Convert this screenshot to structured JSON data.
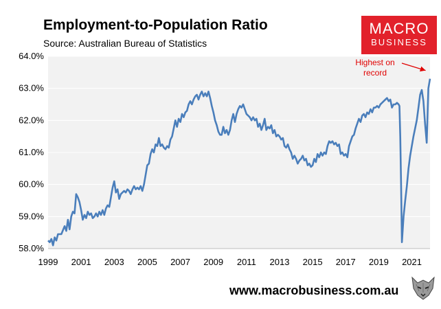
{
  "header": {
    "title": "Employment-to-Population Ratio",
    "subtitle": "Source: Australian Bureau of Statistics"
  },
  "logo": {
    "line1": "MACRO",
    "line2": "BUSINESS",
    "color": "#e2212b"
  },
  "footer": {
    "url": "www.macrobusiness.com.au",
    "icon": "wolf-icon"
  },
  "chart_data": {
    "type": "line",
    "x_tick_labels": [
      "1999",
      "2001",
      "2003",
      "2005",
      "2007",
      "2009",
      "2011",
      "2013",
      "2015",
      "2017",
      "2019",
      "2021"
    ],
    "x_ticks": [
      1999,
      2001,
      2003,
      2005,
      2007,
      2009,
      2011,
      2013,
      2015,
      2017,
      2019,
      2021
    ],
    "y_tick_labels": [
      "58.0%",
      "59.0%",
      "60.0%",
      "61.0%",
      "62.0%",
      "63.0%",
      "64.0%"
    ],
    "y_ticks": [
      58,
      59,
      60,
      61,
      62,
      63,
      64
    ],
    "xlim": [
      1999,
      2022.1
    ],
    "ylim": [
      58,
      64
    ],
    "grid": true,
    "legend": "none",
    "series_color": "#4a7ebb",
    "plot_background": "#f2f2f2",
    "annotation": {
      "lines": [
        "Highest on",
        "record"
      ],
      "color": "#e00000",
      "x": 2022,
      "y": 63.3
    },
    "series": [
      {
        "values": [
          [
            1999.0,
            58.25
          ],
          [
            1999.1,
            58.2
          ],
          [
            1999.2,
            58.3
          ],
          [
            1999.3,
            58.1
          ],
          [
            1999.4,
            58.35
          ],
          [
            1999.5,
            58.25
          ],
          [
            1999.6,
            58.45
          ],
          [
            1999.8,
            58.45
          ],
          [
            2000.0,
            58.7
          ],
          [
            2000.1,
            58.55
          ],
          [
            2000.2,
            58.9
          ],
          [
            2000.3,
            58.6
          ],
          [
            2000.4,
            59.0
          ],
          [
            2000.5,
            59.15
          ],
          [
            2000.6,
            59.1
          ],
          [
            2000.7,
            59.7
          ],
          [
            2000.8,
            59.6
          ],
          [
            2000.9,
            59.45
          ],
          [
            2001.0,
            59.2
          ],
          [
            2001.1,
            58.9
          ],
          [
            2001.2,
            59.05
          ],
          [
            2001.3,
            58.95
          ],
          [
            2001.4,
            59.15
          ],
          [
            2001.5,
            59.05
          ],
          [
            2001.6,
            59.1
          ],
          [
            2001.7,
            58.95
          ],
          [
            2001.8,
            59.0
          ],
          [
            2001.9,
            59.1
          ],
          [
            2002.0,
            59.0
          ],
          [
            2002.1,
            59.15
          ],
          [
            2002.2,
            59.05
          ],
          [
            2002.3,
            59.2
          ],
          [
            2002.4,
            59.05
          ],
          [
            2002.5,
            59.25
          ],
          [
            2002.6,
            59.35
          ],
          [
            2002.7,
            59.3
          ],
          [
            2002.8,
            59.6
          ],
          [
            2002.9,
            59.9
          ],
          [
            2003.0,
            60.1
          ],
          [
            2003.1,
            59.75
          ],
          [
            2003.2,
            59.85
          ],
          [
            2003.3,
            59.55
          ],
          [
            2003.4,
            59.7
          ],
          [
            2003.5,
            59.75
          ],
          [
            2003.6,
            59.8
          ],
          [
            2003.7,
            59.75
          ],
          [
            2003.8,
            59.85
          ],
          [
            2003.9,
            59.8
          ],
          [
            2004.0,
            59.7
          ],
          [
            2004.1,
            59.85
          ],
          [
            2004.2,
            59.95
          ],
          [
            2004.3,
            59.85
          ],
          [
            2004.4,
            59.9
          ],
          [
            2004.5,
            59.85
          ],
          [
            2004.6,
            59.95
          ],
          [
            2004.7,
            59.8
          ],
          [
            2004.8,
            60.0
          ],
          [
            2004.9,
            60.3
          ],
          [
            2005.0,
            60.6
          ],
          [
            2005.1,
            60.65
          ],
          [
            2005.2,
            60.95
          ],
          [
            2005.3,
            61.1
          ],
          [
            2005.4,
            61.0
          ],
          [
            2005.5,
            61.25
          ],
          [
            2005.6,
            61.2
          ],
          [
            2005.7,
            61.45
          ],
          [
            2005.8,
            61.2
          ],
          [
            2005.9,
            61.25
          ],
          [
            2006.0,
            61.15
          ],
          [
            2006.1,
            61.1
          ],
          [
            2006.2,
            61.2
          ],
          [
            2006.3,
            61.15
          ],
          [
            2006.4,
            61.4
          ],
          [
            2006.5,
            61.5
          ],
          [
            2006.6,
            61.75
          ],
          [
            2006.7,
            62.0
          ],
          [
            2006.8,
            61.8
          ],
          [
            2006.9,
            62.05
          ],
          [
            2007.0,
            61.95
          ],
          [
            2007.1,
            62.2
          ],
          [
            2007.2,
            62.1
          ],
          [
            2007.3,
            62.25
          ],
          [
            2007.4,
            62.3
          ],
          [
            2007.5,
            62.5
          ],
          [
            2007.6,
            62.6
          ],
          [
            2007.7,
            62.5
          ],
          [
            2007.8,
            62.65
          ],
          [
            2007.9,
            62.75
          ],
          [
            2008.0,
            62.8
          ],
          [
            2008.1,
            62.65
          ],
          [
            2008.2,
            62.8
          ],
          [
            2008.3,
            62.9
          ],
          [
            2008.4,
            62.75
          ],
          [
            2008.5,
            62.85
          ],
          [
            2008.6,
            62.75
          ],
          [
            2008.7,
            62.9
          ],
          [
            2008.8,
            62.7
          ],
          [
            2008.9,
            62.45
          ],
          [
            2009.0,
            62.25
          ],
          [
            2009.1,
            62.0
          ],
          [
            2009.2,
            61.85
          ],
          [
            2009.3,
            61.65
          ],
          [
            2009.4,
            61.55
          ],
          [
            2009.5,
            61.55
          ],
          [
            2009.6,
            61.8
          ],
          [
            2009.7,
            61.6
          ],
          [
            2009.8,
            61.7
          ],
          [
            2009.9,
            61.55
          ],
          [
            2010.0,
            61.7
          ],
          [
            2010.1,
            62.0
          ],
          [
            2010.2,
            62.2
          ],
          [
            2010.3,
            61.95
          ],
          [
            2010.4,
            62.2
          ],
          [
            2010.5,
            62.35
          ],
          [
            2010.6,
            62.45
          ],
          [
            2010.7,
            62.4
          ],
          [
            2010.8,
            62.5
          ],
          [
            2010.9,
            62.35
          ],
          [
            2011.0,
            62.2
          ],
          [
            2011.1,
            62.15
          ],
          [
            2011.2,
            62.1
          ],
          [
            2011.3,
            62.0
          ],
          [
            2011.4,
            62.1
          ],
          [
            2011.5,
            62.0
          ],
          [
            2011.6,
            62.05
          ],
          [
            2011.7,
            61.8
          ],
          [
            2011.8,
            61.9
          ],
          [
            2011.9,
            61.7
          ],
          [
            2012.0,
            61.85
          ],
          [
            2012.1,
            62.05
          ],
          [
            2012.2,
            61.7
          ],
          [
            2012.3,
            61.8
          ],
          [
            2012.4,
            61.75
          ],
          [
            2012.5,
            61.85
          ],
          [
            2012.6,
            61.6
          ],
          [
            2012.7,
            61.7
          ],
          [
            2012.8,
            61.5
          ],
          [
            2012.9,
            61.55
          ],
          [
            2013.0,
            61.5
          ],
          [
            2013.1,
            61.4
          ],
          [
            2013.2,
            61.45
          ],
          [
            2013.3,
            61.2
          ],
          [
            2013.4,
            61.15
          ],
          [
            2013.5,
            61.25
          ],
          [
            2013.6,
            61.1
          ],
          [
            2013.7,
            61.0
          ],
          [
            2013.8,
            60.8
          ],
          [
            2013.9,
            60.9
          ],
          [
            2014.0,
            60.8
          ],
          [
            2014.1,
            60.65
          ],
          [
            2014.2,
            60.75
          ],
          [
            2014.3,
            60.8
          ],
          [
            2014.4,
            60.9
          ],
          [
            2014.5,
            60.75
          ],
          [
            2014.6,
            60.8
          ],
          [
            2014.7,
            60.6
          ],
          [
            2014.8,
            60.65
          ],
          [
            2014.9,
            60.55
          ],
          [
            2015.0,
            60.6
          ],
          [
            2015.1,
            60.8
          ],
          [
            2015.2,
            60.7
          ],
          [
            2015.3,
            60.95
          ],
          [
            2015.4,
            60.85
          ],
          [
            2015.5,
            61.0
          ],
          [
            2015.6,
            60.9
          ],
          [
            2015.7,
            61.0
          ],
          [
            2015.8,
            60.95
          ],
          [
            2015.9,
            61.2
          ],
          [
            2016.0,
            61.35
          ],
          [
            2016.1,
            61.3
          ],
          [
            2016.2,
            61.35
          ],
          [
            2016.3,
            61.25
          ],
          [
            2016.4,
            61.3
          ],
          [
            2016.5,
            61.2
          ],
          [
            2016.6,
            61.25
          ],
          [
            2016.7,
            60.95
          ],
          [
            2016.8,
            61.0
          ],
          [
            2016.9,
            60.9
          ],
          [
            2017.0,
            60.95
          ],
          [
            2017.1,
            60.85
          ],
          [
            2017.2,
            61.2
          ],
          [
            2017.3,
            61.35
          ],
          [
            2017.4,
            61.5
          ],
          [
            2017.5,
            61.55
          ],
          [
            2017.6,
            61.75
          ],
          [
            2017.7,
            61.9
          ],
          [
            2017.8,
            62.05
          ],
          [
            2017.9,
            61.95
          ],
          [
            2018.0,
            62.15
          ],
          [
            2018.1,
            62.2
          ],
          [
            2018.2,
            62.1
          ],
          [
            2018.3,
            62.25
          ],
          [
            2018.4,
            62.2
          ],
          [
            2018.5,
            62.35
          ],
          [
            2018.6,
            62.25
          ],
          [
            2018.7,
            62.4
          ],
          [
            2018.8,
            62.4
          ],
          [
            2018.9,
            62.45
          ],
          [
            2019.0,
            62.4
          ],
          [
            2019.1,
            62.5
          ],
          [
            2019.2,
            62.55
          ],
          [
            2019.3,
            62.6
          ],
          [
            2019.4,
            62.65
          ],
          [
            2019.5,
            62.7
          ],
          [
            2019.6,
            62.6
          ],
          [
            2019.7,
            62.65
          ],
          [
            2019.8,
            62.4
          ],
          [
            2019.9,
            62.5
          ],
          [
            2020.0,
            62.5
          ],
          [
            2020.1,
            62.55
          ],
          [
            2020.2,
            62.5
          ],
          [
            2020.25,
            62.45
          ],
          [
            2020.3,
            61.5
          ],
          [
            2020.35,
            60.0
          ],
          [
            2020.4,
            58.2
          ],
          [
            2020.5,
            59.0
          ],
          [
            2020.6,
            59.5
          ],
          [
            2020.7,
            59.95
          ],
          [
            2020.8,
            60.5
          ],
          [
            2020.9,
            60.9
          ],
          [
            2021.0,
            61.2
          ],
          [
            2021.1,
            61.5
          ],
          [
            2021.2,
            61.75
          ],
          [
            2021.3,
            62.0
          ],
          [
            2021.4,
            62.4
          ],
          [
            2021.5,
            62.8
          ],
          [
            2021.6,
            62.95
          ],
          [
            2021.7,
            62.6
          ],
          [
            2021.8,
            61.9
          ],
          [
            2021.9,
            61.3
          ],
          [
            2022.0,
            63.0
          ],
          [
            2022.1,
            63.3
          ]
        ]
      }
    ]
  }
}
